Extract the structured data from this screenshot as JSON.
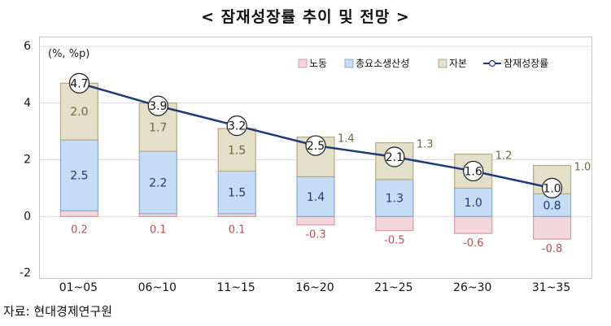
{
  "title": "< 잠재성장률 추이 및 전망 >",
  "source": "자료: 현대경제연구원",
  "colors": {
    "labor": "#f2d6dc",
    "labor_stroke": "#d59aa6",
    "tfp": "#c6dcf4",
    "tfp_stroke": "#86aad6",
    "capital": "#e4dfc9",
    "capital_stroke": "#b4ab86",
    "line": "#1f3a7a",
    "labor_text": "#c0504d",
    "capital_text": "#6d6a34"
  },
  "chart_data": {
    "type": "bar",
    "subtype": "stacked-bar-with-line",
    "unit_label": "(%, %p)",
    "categories": [
      "01~05",
      "06~10",
      "11~15",
      "16~20",
      "21~25",
      "26~30",
      "31~35"
    ],
    "ylim": [
      -2,
      6
    ],
    "yticks": [
      -2,
      0,
      2,
      4,
      6
    ],
    "legend_position": "top-right",
    "series": [
      {
        "name": "노동",
        "kind": "bar",
        "values": [
          0.2,
          0.1,
          0.1,
          -0.3,
          -0.5,
          -0.6,
          -0.8
        ],
        "labels": [
          "0.2",
          "0.1",
          "0.1",
          "-0.3",
          "-0.5",
          "-0.6",
          "-0.8"
        ]
      },
      {
        "name": "총요소생산성",
        "kind": "bar",
        "values": [
          2.5,
          2.2,
          1.5,
          1.4,
          1.3,
          1.0,
          0.8
        ],
        "labels": [
          "2.5",
          "2.2",
          "1.5",
          "1.4",
          "1.3",
          "1.0",
          "0.8"
        ]
      },
      {
        "name": "자본",
        "kind": "bar",
        "values": [
          2.0,
          1.7,
          1.5,
          1.4,
          1.3,
          1.2,
          1.0
        ],
        "labels": [
          "2.0",
          "1.7",
          "1.5",
          "1.4",
          "1.3",
          "1.2",
          "1.0"
        ]
      },
      {
        "name": "잠재성장률",
        "kind": "line",
        "values": [
          4.7,
          3.9,
          3.2,
          2.5,
          2.1,
          1.6,
          1.0
        ],
        "labels": [
          "4.7",
          "3.9",
          "3.2",
          "2.5",
          "2.1",
          "1.6",
          "1.0"
        ]
      }
    ],
    "grid": true
  }
}
